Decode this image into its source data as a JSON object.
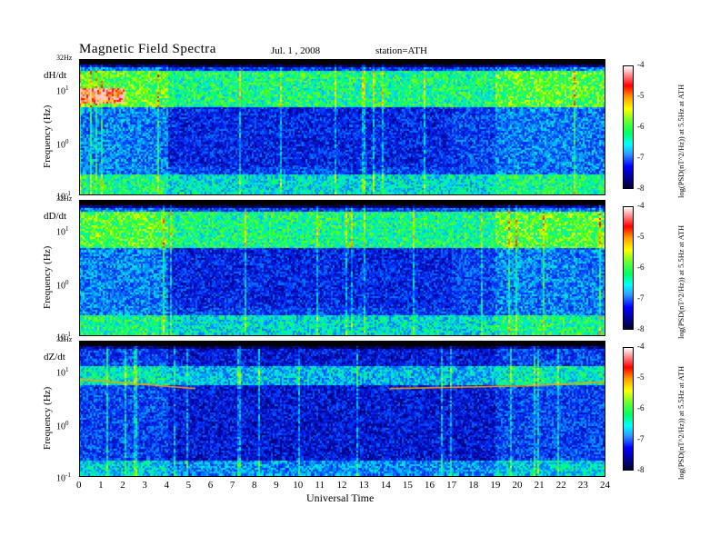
{
  "header": {
    "title": "Magnetic Field Spectra",
    "date": "Jul. 1 , 2008",
    "station": "station=ATH"
  },
  "xaxis": {
    "label": "Universal Time",
    "ticks": [
      "0",
      "1",
      "2",
      "3",
      "4",
      "5",
      "6",
      "7",
      "8",
      "9",
      "10",
      "11",
      "12",
      "13",
      "14",
      "15",
      "16",
      "17",
      "18",
      "19",
      "20",
      "21",
      "22",
      "23",
      "24"
    ]
  },
  "panels": [
    {
      "component": "dH/dt",
      "ylabel": "Frequency (Hz)",
      "top_tick": "32Hz",
      "ticks": [
        "10",
        "1",
        "10",
        "0",
        "10",
        "-1"
      ]
    },
    {
      "component": "dD/dt",
      "ylabel": "Frequency (Hz)",
      "top_tick": "32Hz",
      "ticks": [
        "10",
        "1",
        "10",
        "0",
        "10",
        "-1"
      ]
    },
    {
      "component": "dZ/dt",
      "ylabel": "Frequency (Hz)",
      "top_tick": "32Hz",
      "ticks": [
        "10",
        "1",
        "10",
        "0",
        "10",
        "-1"
      ]
    }
  ],
  "colorbar": {
    "label": "log(PSD(nT^2/Hz)) at 5.5Hz at ATH",
    "ticks": [
      "-4",
      "-5",
      "-6",
      "-7",
      "-8"
    ]
  },
  "chart_data": [
    {
      "type": "heatmap",
      "title": "dH/dt",
      "xlabel": "Universal Time",
      "ylabel": "Frequency (Hz)",
      "xlim": [
        0,
        24
      ],
      "ylim": [
        0.1,
        32
      ],
      "yscale": "log",
      "colorbar_range": [
        -8,
        -4
      ],
      "colorbar_label": "log(PSD(nT^2/Hz)) at 5.5Hz at ATH"
    },
    {
      "type": "heatmap",
      "title": "dD/dt",
      "xlabel": "Universal Time",
      "ylabel": "Frequency (Hz)",
      "xlim": [
        0,
        24
      ],
      "ylim": [
        0.1,
        32
      ],
      "yscale": "log",
      "colorbar_range": [
        -8,
        -4
      ],
      "colorbar_label": "log(PSD(nT^2/Hz)) at 5.5Hz at ATH"
    },
    {
      "type": "heatmap",
      "title": "dZ/dt",
      "xlabel": "Universal Time",
      "ylabel": "Frequency (Hz)",
      "xlim": [
        0,
        24
      ],
      "ylim": [
        0.1,
        32
      ],
      "yscale": "log",
      "colorbar_range": [
        -8,
        -4
      ],
      "colorbar_label": "log(PSD(nT^2/Hz)) at 5.5Hz at ATH"
    }
  ]
}
